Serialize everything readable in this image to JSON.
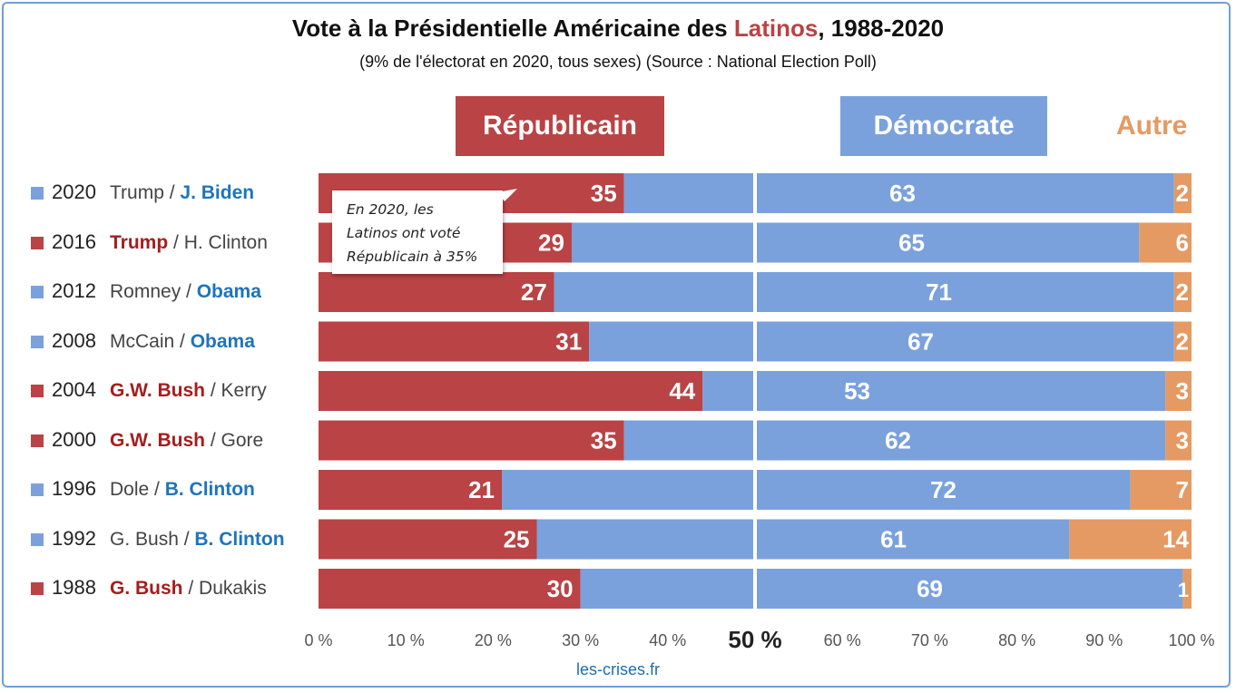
{
  "title": {
    "prefix": "Vote à la Présidentielle Américaine des ",
    "highlight": "Latinos",
    "suffix": ", 1988-2020"
  },
  "subtitle": "(9% de l'électorat en 2020, tous sexes) (Source : National Election Poll)",
  "headers": {
    "rep": "Républicain",
    "dem": "Démocrate",
    "other": "Autre"
  },
  "callout": {
    "line1": "En 2020, les",
    "line2": "Latinos ont voté",
    "line3": "Républicain à 35%"
  },
  "credit": "les-crises.fr",
  "colors": {
    "rep": "#b94345",
    "dem": "#7aa1dc",
    "other": "#e59a63",
    "rep_text": "#a51d1d",
    "dem_text": "#1e74bc"
  },
  "rows": [
    {
      "year": "2020",
      "rep_cand": "Trump",
      "dem_cand": "J. Biden",
      "winner": "dem"
    },
    {
      "year": "2016",
      "rep_cand": "Trump",
      "dem_cand": "H. Clinton",
      "winner": "rep"
    },
    {
      "year": "2012",
      "rep_cand": "Romney",
      "dem_cand": "Obama",
      "winner": "dem"
    },
    {
      "year": "2008",
      "rep_cand": "McCain",
      "dem_cand": "Obama",
      "winner": "dem"
    },
    {
      "year": "2004",
      "rep_cand": "G.W. Bush",
      "dem_cand": "Kerry",
      "winner": "rep"
    },
    {
      "year": "2000",
      "rep_cand": "G.W. Bush",
      "dem_cand": "Gore",
      "winner": "rep"
    },
    {
      "year": "1996",
      "rep_cand": "Dole",
      "dem_cand": "B. Clinton",
      "winner": "dem"
    },
    {
      "year": "1992",
      "rep_cand": "G. Bush",
      "dem_cand": "B. Clinton",
      "winner": "dem"
    },
    {
      "year": "1988",
      "rep_cand": "G. Bush",
      "dem_cand": "Dukakis",
      "winner": "rep"
    }
  ],
  "chart_data": {
    "type": "bar",
    "orientation": "horizontal-stacked",
    "categories": [
      "2020",
      "2016",
      "2012",
      "2008",
      "2004",
      "2000",
      "1996",
      "1992",
      "1988"
    ],
    "series": [
      {
        "name": "Républicain",
        "values": [
          35,
          29,
          27,
          31,
          44,
          35,
          21,
          25,
          30
        ]
      },
      {
        "name": "Démocrate",
        "values": [
          63,
          65,
          71,
          67,
          53,
          62,
          72,
          61,
          69
        ]
      },
      {
        "name": "Autre",
        "values": [
          2,
          6,
          2,
          2,
          3,
          3,
          7,
          14,
          1
        ]
      }
    ],
    "xlim": [
      0,
      100
    ],
    "x_ticks": [
      "0 %",
      "10 %",
      "20 %",
      "30 %",
      "40 %",
      "50 %",
      "60 %",
      "70 %",
      "80 %",
      "90 %",
      "100 %"
    ],
    "midline": 50,
    "grid": false
  }
}
